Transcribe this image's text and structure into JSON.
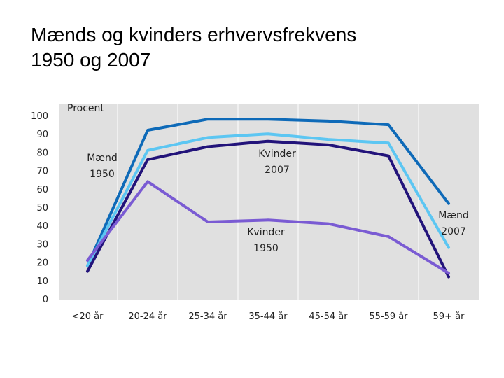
{
  "slide": {
    "title_line1": "Mænds og kvinders erhvervsfrekvens",
    "title_line2": "1950 og 2007"
  },
  "chart_data": {
    "type": "line",
    "title": "",
    "ylabel": "Procent",
    "xlabel": "",
    "categories": [
      "<20 år",
      "20-24 år",
      "25-34 år",
      "35-44 år",
      "45-54 år",
      "55-59 år",
      "59+ år"
    ],
    "yticks": [
      "100",
      "90",
      "80",
      "70",
      "60",
      "50",
      "40",
      "30",
      "20",
      "10",
      "0"
    ],
    "ylim": [
      0,
      100
    ],
    "grid": "vertical",
    "background": "#e0e0e0",
    "series": [
      {
        "name": "Mænd 1950",
        "color": "#0e6ab8",
        "values": [
          18,
          92,
          98,
          98,
          97,
          95,
          52
        ],
        "label_lines": [
          "Mænd",
          "1950"
        ]
      },
      {
        "name": "Mænd 2007",
        "color": "#5cc6f2",
        "values": [
          18,
          81,
          88,
          90,
          87,
          85,
          28
        ],
        "label_lines": [
          "Mænd",
          "2007"
        ]
      },
      {
        "name": "Kvinder 2007",
        "color": "#22137a",
        "values": [
          15,
          76,
          83,
          86,
          84,
          78,
          12
        ],
        "label_lines": [
          "Kvinder",
          "2007"
        ]
      },
      {
        "name": "Kvinder 1950",
        "color": "#7a5bd3",
        "values": [
          21,
          64,
          42,
          43,
          41,
          34,
          14
        ],
        "label_lines": [
          "Kvinder",
          "1950"
        ]
      }
    ]
  }
}
